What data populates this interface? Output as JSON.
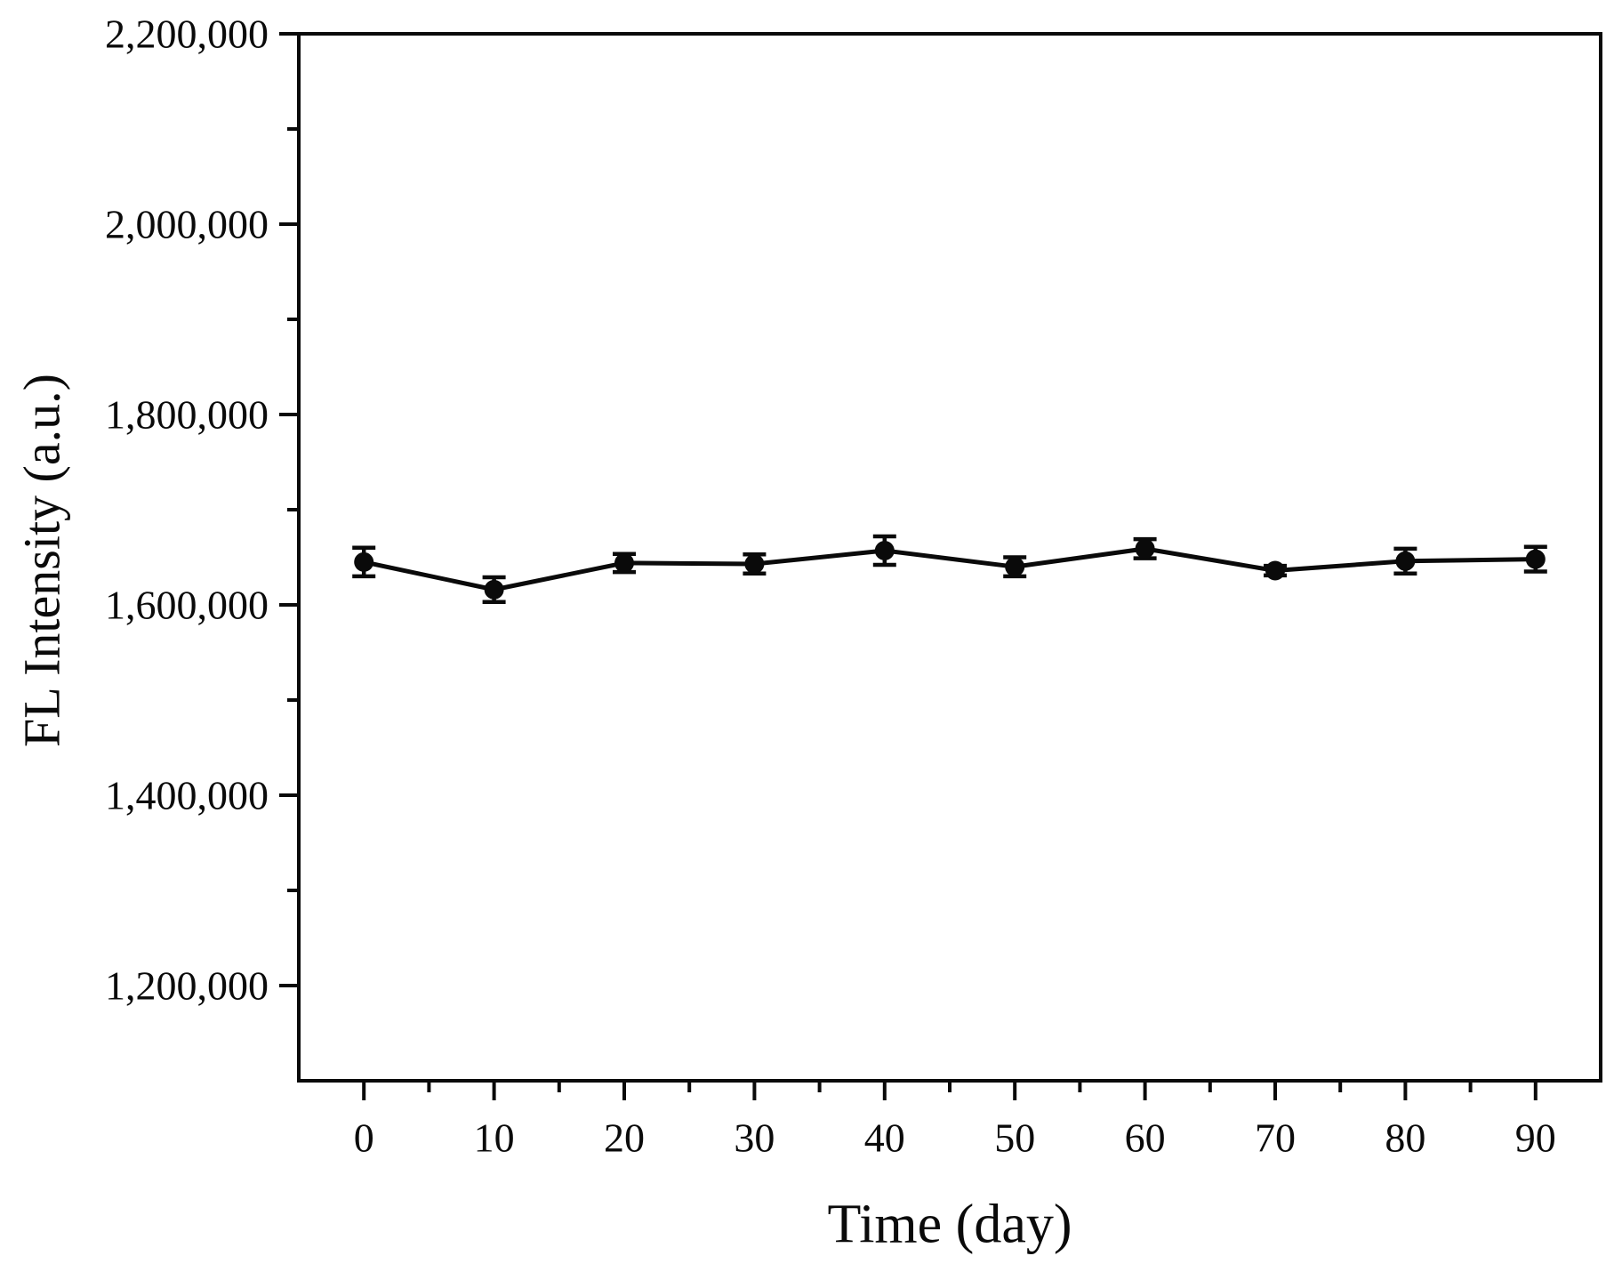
{
  "figure": {
    "background_color": "#ffffff",
    "ink_color": "#0a0a0a"
  },
  "chart_data": {
    "type": "line",
    "title": "",
    "xlabel": "Time (day)",
    "ylabel": "FL Intensity (a.u.)",
    "grid": false,
    "legend": null,
    "marker": "filled-circle",
    "line_color": "#0a0a0a",
    "xlim": [
      -5,
      95
    ],
    "ylim": [
      1100000,
      2200000
    ],
    "x": [
      0,
      10,
      20,
      30,
      40,
      50,
      60,
      70,
      80,
      90
    ],
    "series": [
      {
        "name": "FL Intensity",
        "values": [
          1645000,
          1616000,
          1644000,
          1643000,
          1657000,
          1640000,
          1659000,
          1636000,
          1646000,
          1648000
        ],
        "errors": [
          15000,
          13000,
          9500,
          10000,
          15000,
          10000,
          10000,
          5000,
          13000,
          13000
        ]
      }
    ],
    "x_major_ticks": [
      0,
      10,
      20,
      30,
      40,
      50,
      60,
      70,
      80,
      90
    ],
    "x_tick_labels": [
      "0",
      "10",
      "20",
      "30",
      "40",
      "50",
      "60",
      "70",
      "80",
      "90"
    ],
    "x_minor_ticks": [
      5,
      15,
      25,
      35,
      45,
      55,
      65,
      75,
      85
    ],
    "y_major_ticks": [
      1200000,
      1400000,
      1600000,
      1800000,
      2000000,
      2200000
    ],
    "y_tick_labels": [
      "1,200,000",
      "1,400,000",
      "1,600,000",
      "1,800,000",
      "2,000,000",
      "2,200,000"
    ],
    "y_minor_ticks": [
      1300000,
      1500000,
      1700000,
      1900000,
      2100000
    ]
  }
}
